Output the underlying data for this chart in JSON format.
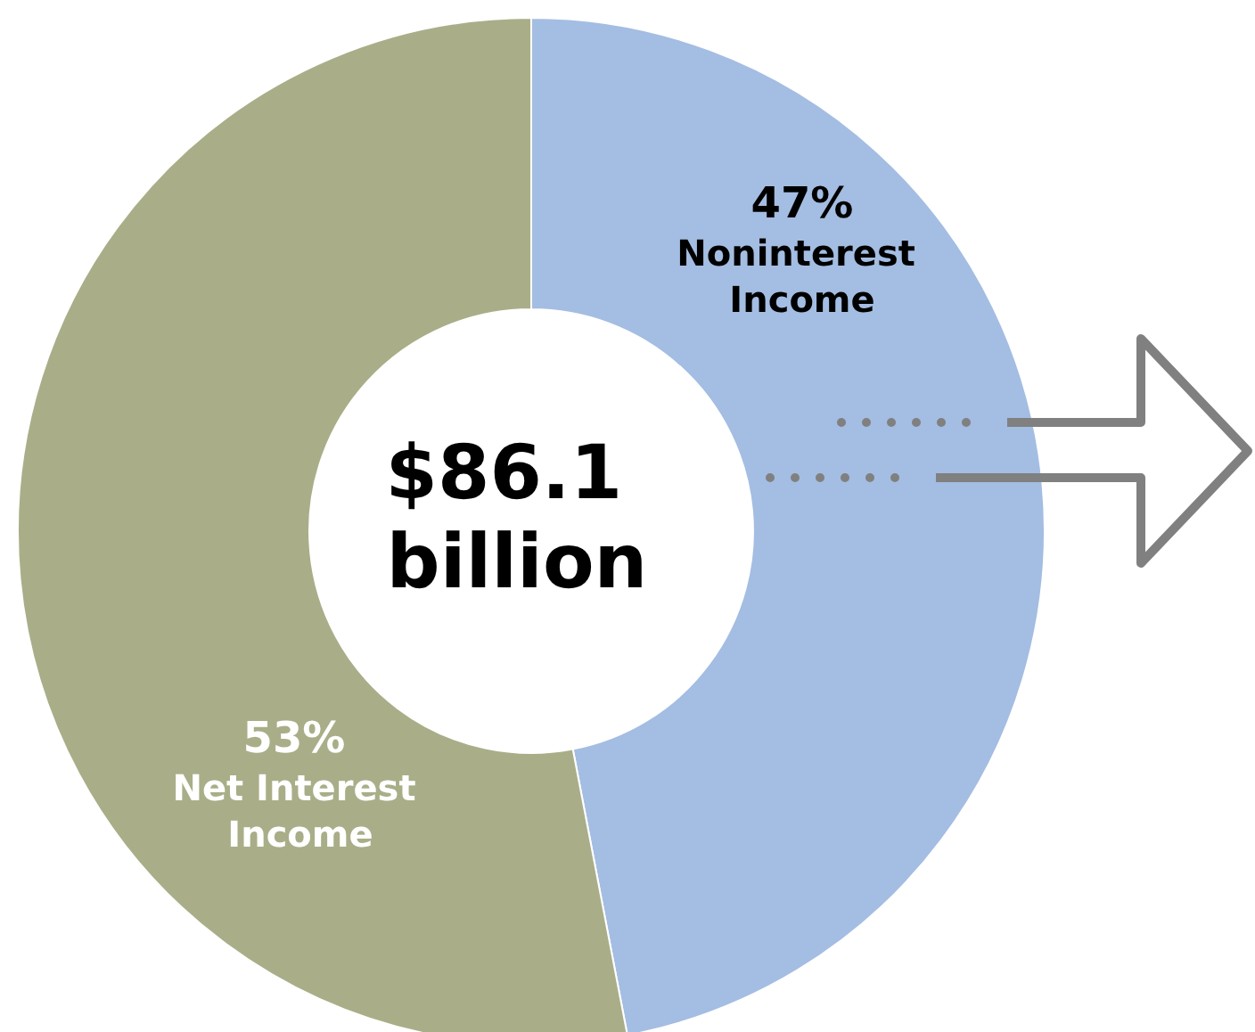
{
  "chart_data": {
    "type": "donut",
    "categories": [
      "Noninterest Income",
      "Net Interest Income"
    ],
    "values": [
      47,
      53
    ],
    "value_labels": [
      "47%",
      "53%"
    ],
    "colors": [
      "#a4bde2",
      "#a9ae88"
    ],
    "annotations": [
      "$86.1 billion"
    ],
    "legend": false
  }
}
